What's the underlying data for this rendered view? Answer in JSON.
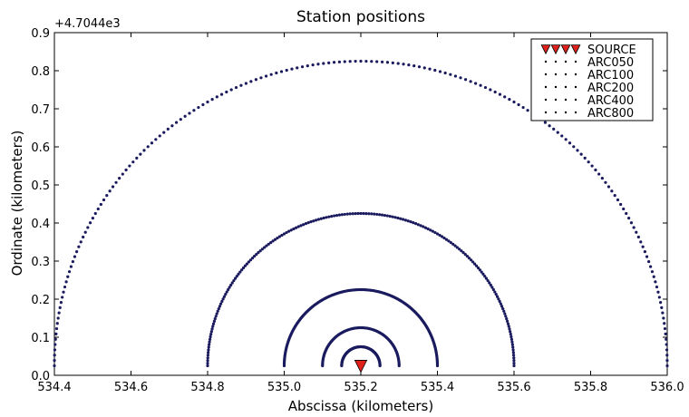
{
  "chart_data": {
    "type": "scatter",
    "title": "Station positions",
    "xlabel": "Abscissa (kilometers)",
    "ylabel": "Ordinate (kilometers)",
    "y_offset_label": "+4.7044e3",
    "xlim": [
      534.4,
      536.0
    ],
    "ylim": [
      0.0,
      0.9
    ],
    "xticks": [
      "534.4",
      "534.6",
      "534.8",
      "535.0",
      "535.2",
      "535.4",
      "535.6",
      "535.8",
      "536.0"
    ],
    "yticks": [
      "0.0",
      "0.1",
      "0.2",
      "0.3",
      "0.4",
      "0.5",
      "0.6",
      "0.7",
      "0.8",
      "0.9"
    ],
    "grid": false,
    "legend_position": "top-right",
    "colors": {
      "arc_points": "#1a1a5e",
      "source_fill": "#e0201b",
      "source_edge": "#000000"
    },
    "source": {
      "name": "SOURCE",
      "x": 535.2,
      "y": 0.025
    },
    "series": [
      {
        "name": "ARC050",
        "center_x": 535.2,
        "center_y": 0.025,
        "radius": 0.05,
        "points": 100
      },
      {
        "name": "ARC100",
        "center_x": 535.2,
        "center_y": 0.025,
        "radius": 0.1,
        "points": 100
      },
      {
        "name": "ARC200",
        "center_x": 535.2,
        "center_y": 0.025,
        "radius": 0.2,
        "points": 180
      },
      {
        "name": "ARC400",
        "center_x": 535.2,
        "center_y": 0.025,
        "radius": 0.4,
        "points": 180
      },
      {
        "name": "ARC800",
        "center_x": 535.2,
        "center_y": 0.025,
        "radius": 0.8,
        "points": 180
      }
    ]
  }
}
